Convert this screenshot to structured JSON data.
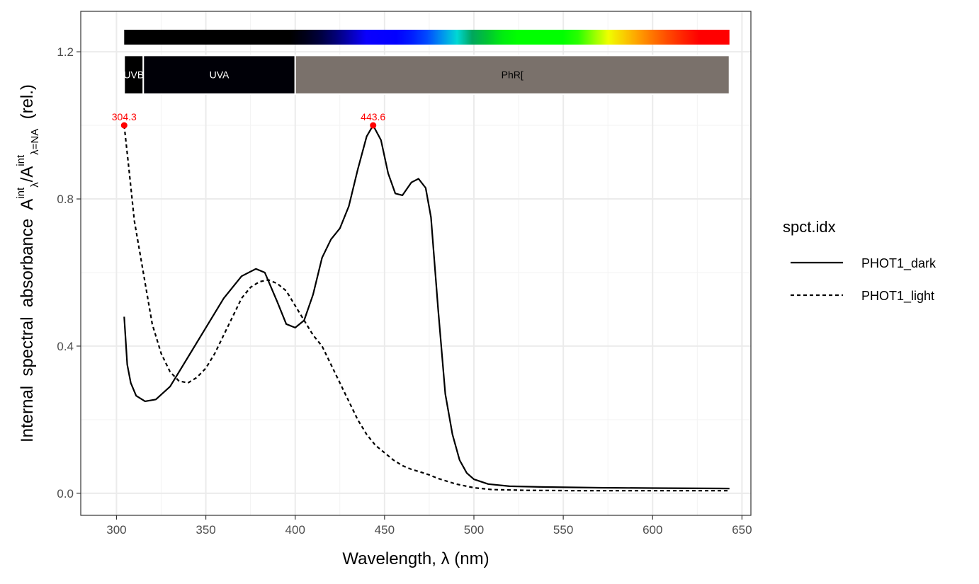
{
  "chart_data": {
    "type": "line",
    "xlabel": "Wavelength, λ (nm)",
    "ylabel": {
      "prefix": "Internal  spectral  absorbance  ",
      "numerator": "A",
      "numerator_sub": "λ",
      "numerator_sup": "int",
      "denominator": "A",
      "denominator_sub": "λ=NA",
      "denominator_sup": "int",
      "suffix": "  (rel.)"
    },
    "xlim": [
      280,
      655
    ],
    "ylim": [
      -0.06,
      1.31
    ],
    "x_ticks": [
      300,
      350,
      400,
      450,
      500,
      550,
      600,
      650
    ],
    "y_ticks": [
      0.0,
      0.4,
      0.8,
      1.2
    ],
    "x_tick_labels": [
      "300",
      "350",
      "400",
      "450",
      "500",
      "550",
      "600",
      "650"
    ],
    "y_tick_labels": [
      "0.0",
      "0.4",
      "0.8",
      "1.2"
    ],
    "grid": true,
    "legend": {
      "title": "spct.idx",
      "position": "right",
      "entries": [
        "PHOT1_dark",
        "PHOT1_light"
      ]
    },
    "series": [
      {
        "name": "PHOT1_dark",
        "linetype": "solid",
        "color": "#000000",
        "points": [
          [
            304.3,
            0.48
          ],
          [
            306,
            0.35
          ],
          [
            308,
            0.3
          ],
          [
            311,
            0.265
          ],
          [
            316,
            0.25
          ],
          [
            322,
            0.255
          ],
          [
            330,
            0.29
          ],
          [
            340,
            0.37
          ],
          [
            350,
            0.45
          ],
          [
            360,
            0.53
          ],
          [
            370,
            0.59
          ],
          [
            378,
            0.61
          ],
          [
            383,
            0.6
          ],
          [
            390,
            0.52
          ],
          [
            395,
            0.46
          ],
          [
            400,
            0.45
          ],
          [
            405,
            0.47
          ],
          [
            410,
            0.54
          ],
          [
            415,
            0.64
          ],
          [
            420,
            0.69
          ],
          [
            425,
            0.72
          ],
          [
            430,
            0.78
          ],
          [
            435,
            0.88
          ],
          [
            440,
            0.97
          ],
          [
            443.6,
            1.0
          ],
          [
            448,
            0.96
          ],
          [
            452,
            0.87
          ],
          [
            456,
            0.815
          ],
          [
            460,
            0.81
          ],
          [
            465,
            0.845
          ],
          [
            469,
            0.855
          ],
          [
            473,
            0.83
          ],
          [
            476,
            0.75
          ],
          [
            480,
            0.5
          ],
          [
            484,
            0.27
          ],
          [
            488,
            0.16
          ],
          [
            492,
            0.09
          ],
          [
            496,
            0.055
          ],
          [
            500,
            0.038
          ],
          [
            508,
            0.025
          ],
          [
            520,
            0.019
          ],
          [
            540,
            0.017
          ],
          [
            570,
            0.015
          ],
          [
            600,
            0.014
          ],
          [
            643,
            0.013
          ]
        ]
      },
      {
        "name": "PHOT1_light",
        "linetype": "dashed",
        "color": "#000000",
        "points": [
          [
            304.3,
            1.0
          ],
          [
            307,
            0.88
          ],
          [
            310,
            0.74
          ],
          [
            315,
            0.6
          ],
          [
            320,
            0.46
          ],
          [
            325,
            0.38
          ],
          [
            330,
            0.33
          ],
          [
            335,
            0.305
          ],
          [
            340,
            0.3
          ],
          [
            345,
            0.315
          ],
          [
            350,
            0.34
          ],
          [
            355,
            0.38
          ],
          [
            360,
            0.43
          ],
          [
            365,
            0.48
          ],
          [
            370,
            0.53
          ],
          [
            375,
            0.56
          ],
          [
            380,
            0.575
          ],
          [
            385,
            0.58
          ],
          [
            390,
            0.57
          ],
          [
            395,
            0.55
          ],
          [
            400,
            0.51
          ],
          [
            405,
            0.47
          ],
          [
            410,
            0.43
          ],
          [
            415,
            0.4
          ],
          [
            420,
            0.35
          ],
          [
            425,
            0.3
          ],
          [
            430,
            0.25
          ],
          [
            435,
            0.2
          ],
          [
            440,
            0.16
          ],
          [
            445,
            0.13
          ],
          [
            450,
            0.11
          ],
          [
            455,
            0.09
          ],
          [
            460,
            0.075
          ],
          [
            465,
            0.065
          ],
          [
            470,
            0.058
          ],
          [
            475,
            0.05
          ],
          [
            480,
            0.04
          ],
          [
            490,
            0.025
          ],
          [
            500,
            0.015
          ],
          [
            510,
            0.01
          ],
          [
            530,
            0.008
          ],
          [
            560,
            0.007
          ],
          [
            600,
            0.007
          ],
          [
            643,
            0.007
          ]
        ]
      }
    ],
    "peaks": [
      {
        "x": 304.3,
        "y": 1.0,
        "label": "304.3",
        "color": "#ff0000"
      },
      {
        "x": 443.6,
        "y": 1.0,
        "label": "443.6",
        "color": "#ff0000"
      }
    ],
    "wavebands": [
      {
        "label": "UVB",
        "from": 304.3,
        "to": 315,
        "fill": "#000000",
        "text_color": "#ffffff"
      },
      {
        "label": "UVA",
        "from": 315,
        "to": 400,
        "fill": "#000007",
        "text_color": "#ffffff"
      },
      {
        "label": "PhR[",
        "from": 400,
        "to": 643,
        "fill": "#7a716b",
        "text_color": "#000000"
      }
    ],
    "colour_bar": {
      "from": 304.3,
      "to": 643
    },
    "colors": {
      "peak": "#ff0000",
      "grid_major": "#ebebeb",
      "grid_minor": "#f3f3f3",
      "axis": "#333333"
    }
  }
}
